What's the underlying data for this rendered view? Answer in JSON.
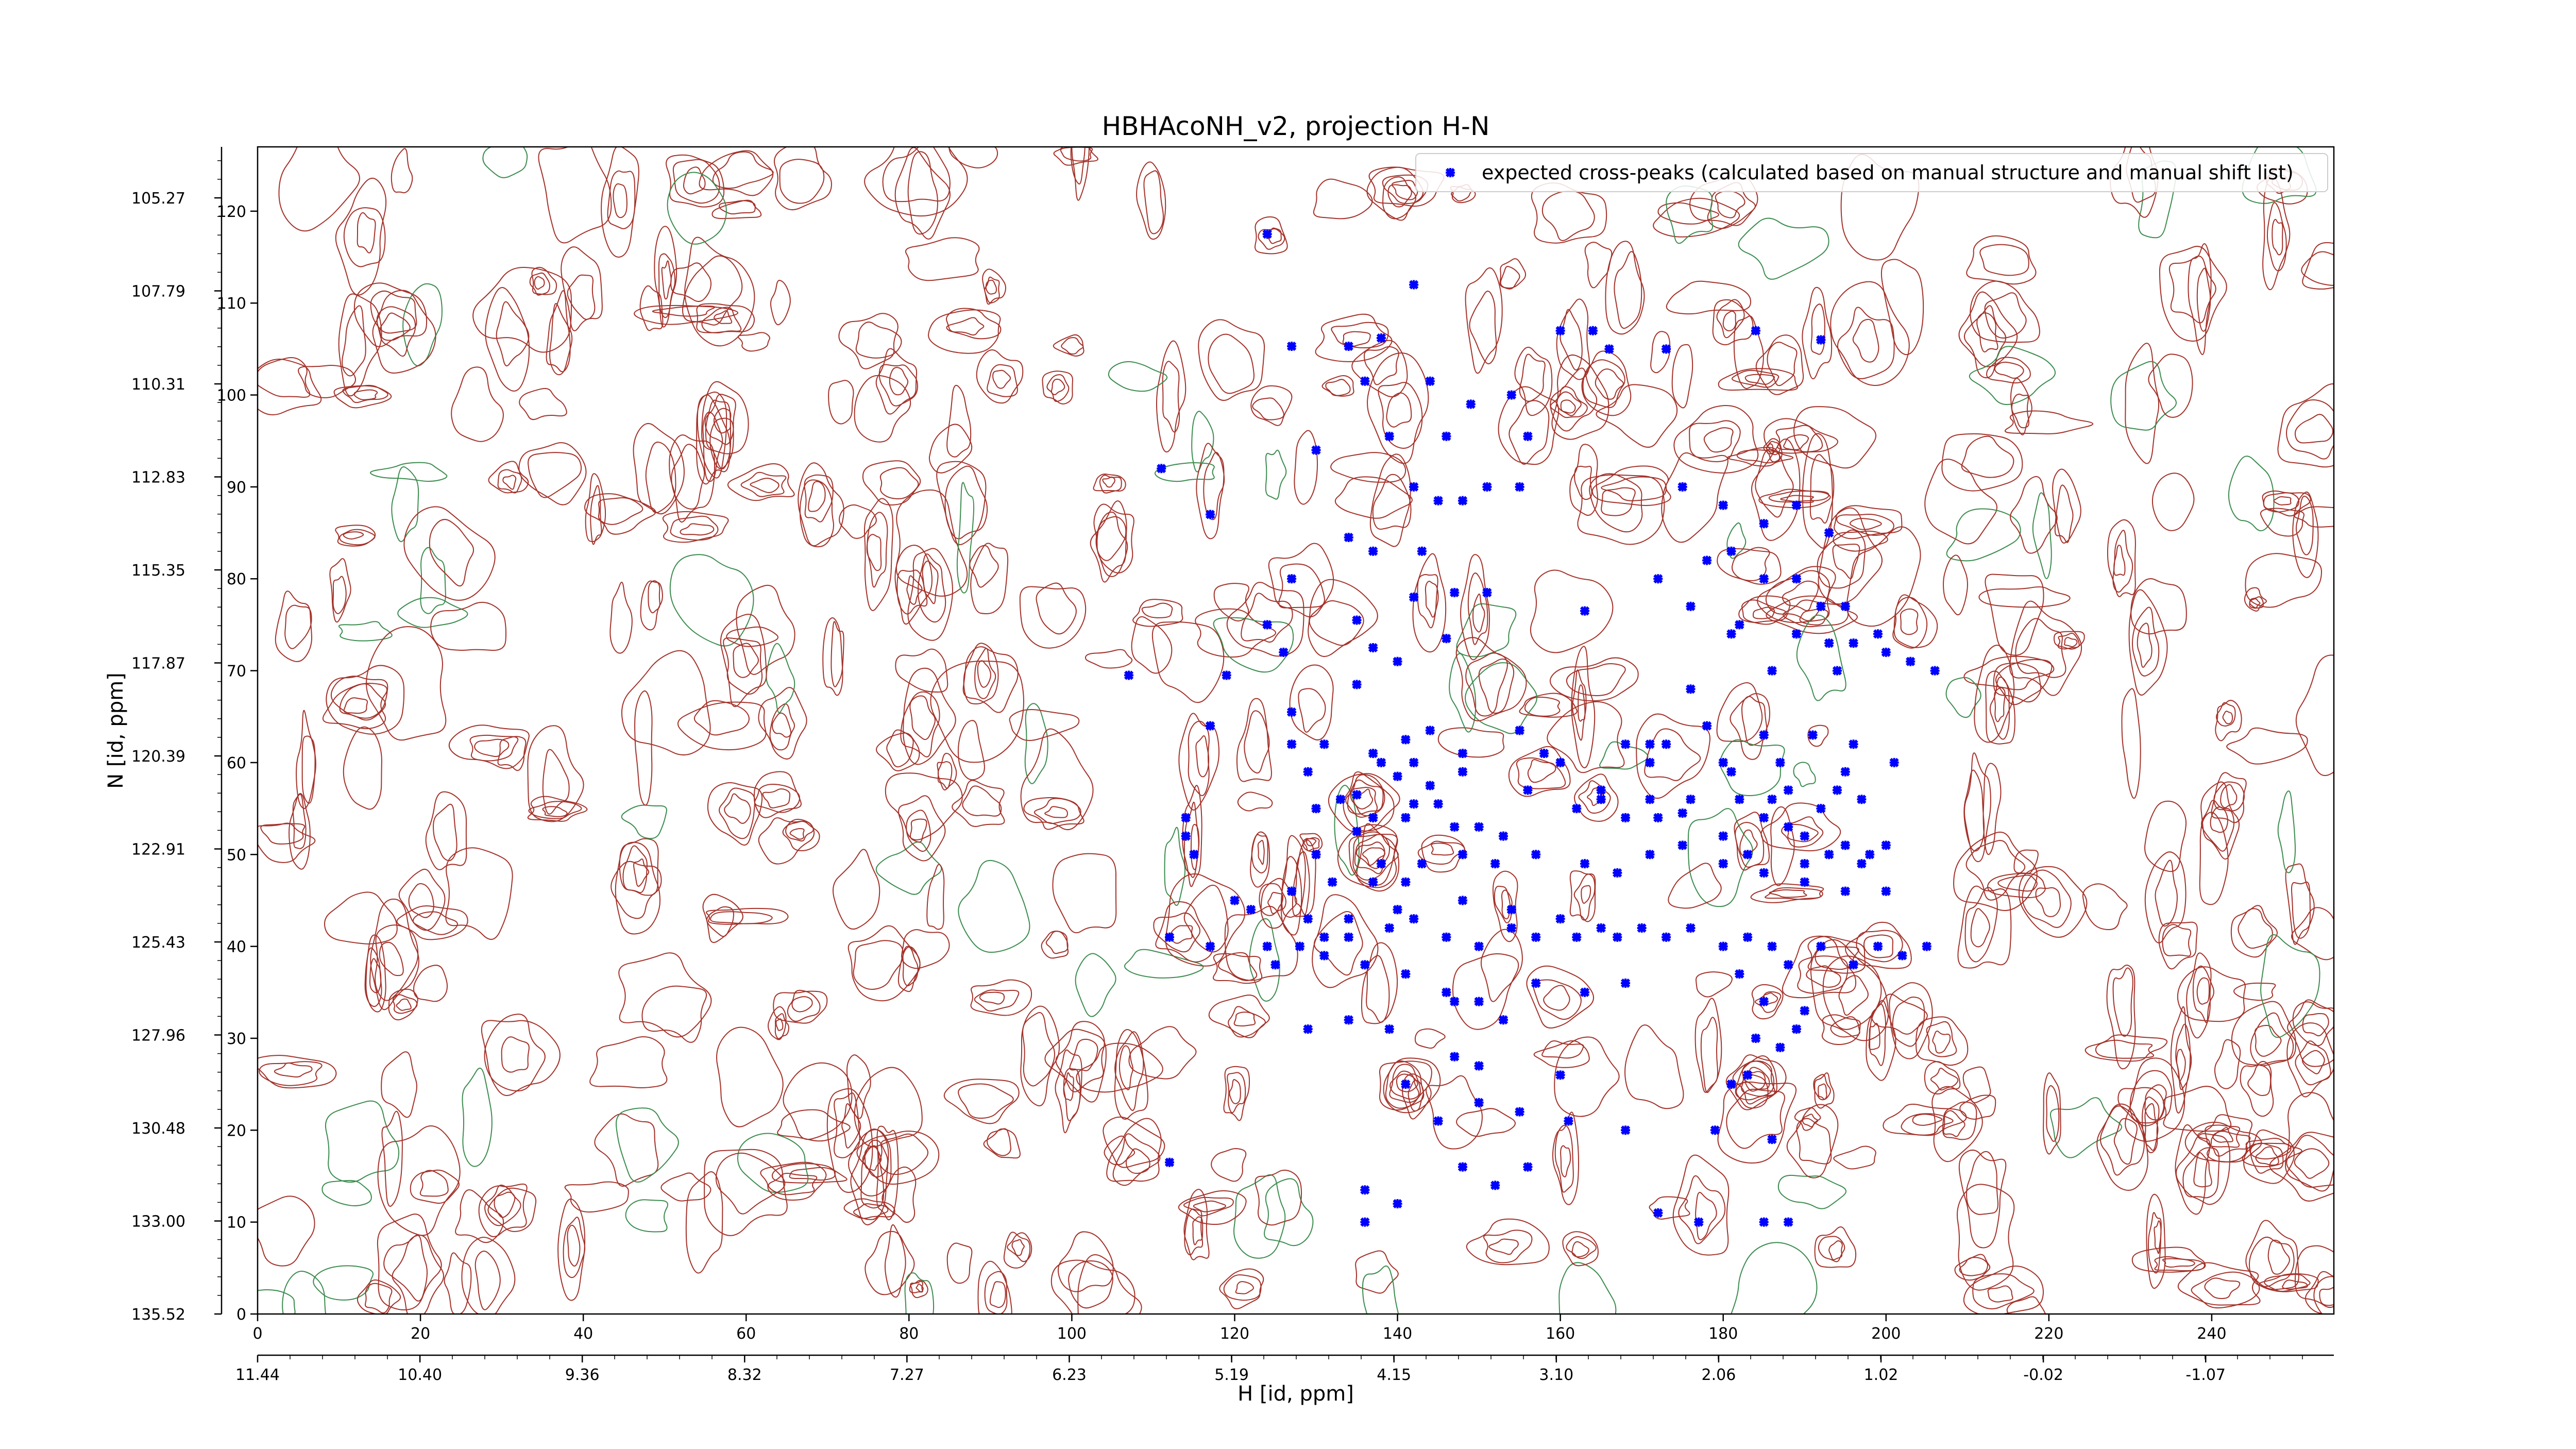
{
  "chart_data": {
    "type": "scatter",
    "title": "HBHAcoNH_v2, projection H-N",
    "xlabel": "H [id, ppm]",
    "ylabel": "N [id, ppm]",
    "xlim": [
      0,
      255
    ],
    "ylim": [
      0,
      127
    ],
    "x_point_ticks": [
      "0",
      "20",
      "40",
      "60",
      "80",
      "100",
      "120",
      "140",
      "160",
      "180",
      "200",
      "220",
      "240"
    ],
    "y_point_ticks": [
      "0",
      "10",
      "20",
      "30",
      "40",
      "50",
      "60",
      "70",
      "80",
      "90",
      "100",
      "110",
      "120"
    ],
    "x_ppm_ticks": [
      "11.44",
      "10.40",
      "9.36",
      "8.32",
      "7.27",
      "6.23",
      "5.19",
      "4.15",
      "3.10",
      "2.06",
      "1.02",
      "-0.02",
      "-1.07"
    ],
    "y_ppm_ticks": [
      "135.52",
      "133.00",
      "130.48",
      "127.96",
      "125.43",
      "122.91",
      "120.39",
      "117.87",
      "115.35",
      "112.83",
      "110.31",
      "107.79",
      "105.27"
    ],
    "grid": false,
    "legend_position": "top-right",
    "series": [
      {
        "name": "expected cross-peaks (calculated based on manual structure and manual shift list)",
        "color": "#0000ff",
        "marker": "x",
        "points": [
          [
            124,
            117.5
          ],
          [
            142,
            112
          ],
          [
            138,
            106.2
          ],
          [
            127,
            105.3
          ],
          [
            134,
            105.3
          ],
          [
            136,
            101.5
          ],
          [
            144,
            101.5
          ],
          [
            149,
            99
          ],
          [
            130,
            94
          ],
          [
            139,
            95.5
          ],
          [
            146,
            95.5
          ],
          [
            156,
            95.5
          ],
          [
            142,
            90
          ],
          [
            145,
            88.5
          ],
          [
            148,
            88.5
          ],
          [
            151,
            90
          ],
          [
            155,
            90
          ],
          [
            117,
            87
          ],
          [
            111,
            92
          ],
          [
            134,
            84.5
          ],
          [
            137,
            83
          ],
          [
            143,
            83
          ],
          [
            127,
            80
          ],
          [
            142,
            78
          ],
          [
            147,
            78.5
          ],
          [
            151,
            78.5
          ],
          [
            163,
            76.5
          ],
          [
            124,
            75
          ],
          [
            135,
            75.5
          ],
          [
            146,
            73.5
          ],
          [
            126,
            72
          ],
          [
            137,
            72.5
          ],
          [
            140,
            71
          ],
          [
            135,
            68.5
          ],
          [
            107,
            69.5
          ],
          [
            119,
            69.5
          ],
          [
            117,
            64
          ],
          [
            127,
            65.5
          ],
          [
            141,
            62.5
          ],
          [
            137,
            61
          ],
          [
            127,
            62
          ],
          [
            131,
            62
          ],
          [
            144,
            63.5
          ],
          [
            148,
            61
          ],
          [
            158,
            61
          ],
          [
            155,
            63.5
          ],
          [
            173,
            62
          ],
          [
            171,
            62
          ],
          [
            129,
            59
          ],
          [
            138,
            60
          ],
          [
            142,
            60
          ],
          [
            148,
            59
          ],
          [
            160,
            60
          ],
          [
            171,
            60
          ],
          [
            180,
            60
          ],
          [
            187,
            60
          ],
          [
            181,
            59
          ],
          [
            195,
            59
          ],
          [
            140,
            58.5
          ],
          [
            144,
            57.5
          ],
          [
            156,
            57
          ],
          [
            165,
            56
          ],
          [
            171,
            56
          ],
          [
            176,
            56
          ],
          [
            182,
            56
          ],
          [
            186,
            56
          ],
          [
            194,
            57
          ],
          [
            133,
            56
          ],
          [
            135,
            56.5
          ],
          [
            130,
            55
          ],
          [
            137,
            54
          ],
          [
            141,
            54
          ],
          [
            142,
            55.5
          ],
          [
            145,
            55.5
          ],
          [
            147,
            53
          ],
          [
            150,
            53
          ],
          [
            153,
            52
          ],
          [
            162,
            55
          ],
          [
            168,
            54
          ],
          [
            172,
            54
          ],
          [
            175,
            54.5
          ],
          [
            185,
            54
          ],
          [
            188,
            53
          ],
          [
            190,
            52
          ],
          [
            195,
            51
          ],
          [
            200,
            51
          ],
          [
            198,
            50
          ],
          [
            171,
            50
          ],
          [
            175,
            51
          ],
          [
            180,
            52
          ],
          [
            183,
            50
          ],
          [
            190,
            49
          ],
          [
            193,
            50
          ],
          [
            197,
            49
          ],
          [
            114,
            54
          ],
          [
            114,
            52
          ],
          [
            115,
            50
          ],
          [
            135,
            52.5
          ],
          [
            130,
            50
          ],
          [
            138,
            49
          ],
          [
            141,
            47
          ],
          [
            143,
            49
          ],
          [
            148,
            50
          ],
          [
            152,
            49
          ],
          [
            157,
            50
          ],
          [
            163,
            49
          ],
          [
            167,
            48
          ],
          [
            180,
            49
          ],
          [
            185,
            48
          ],
          [
            190,
            47
          ],
          [
            195,
            46
          ],
          [
            200,
            46
          ],
          [
            137,
            47
          ],
          [
            132,
            47
          ],
          [
            127,
            46
          ],
          [
            122,
            44
          ],
          [
            124,
            40
          ],
          [
            128,
            40
          ],
          [
            131,
            41
          ],
          [
            134,
            41
          ],
          [
            139,
            42
          ],
          [
            142,
            43
          ],
          [
            146,
            41
          ],
          [
            150,
            40
          ],
          [
            154,
            42
          ],
          [
            157,
            41
          ],
          [
            162,
            41
          ],
          [
            167,
            41
          ],
          [
            173,
            41
          ],
          [
            180,
            40
          ],
          [
            186,
            40
          ],
          [
            192,
            40
          ],
          [
            199,
            40
          ],
          [
            205,
            40
          ],
          [
            112,
            41
          ],
          [
            117,
            40
          ],
          [
            120,
            45
          ],
          [
            129,
            43
          ],
          [
            134,
            43
          ],
          [
            140,
            44
          ],
          [
            148,
            45
          ],
          [
            154,
            44
          ],
          [
            160,
            43
          ],
          [
            165,
            42
          ],
          [
            170,
            42
          ],
          [
            176,
            42
          ],
          [
            183,
            41
          ],
          [
            188,
            38
          ],
          [
            196,
            38
          ],
          [
            202,
            39
          ],
          [
            125,
            38
          ],
          [
            131,
            39
          ],
          [
            136,
            38
          ],
          [
            141,
            37
          ],
          [
            146,
            35
          ],
          [
            150,
            34
          ],
          [
            157,
            36
          ],
          [
            163,
            35
          ],
          [
            168,
            36
          ],
          [
            182,
            37
          ],
          [
            185,
            34
          ],
          [
            190,
            33
          ],
          [
            129,
            31
          ],
          [
            134,
            32
          ],
          [
            139,
            31
          ],
          [
            147,
            34
          ],
          [
            153,
            32
          ],
          [
            184,
            30
          ],
          [
            187,
            29
          ],
          [
            189,
            31
          ],
          [
            141,
            25
          ],
          [
            147,
            28
          ],
          [
            150,
            27
          ],
          [
            160,
            26
          ],
          [
            181,
            25
          ],
          [
            183,
            26
          ],
          [
            145,
            21
          ],
          [
            150,
            23
          ],
          [
            155,
            22
          ],
          [
            161,
            21
          ],
          [
            168,
            20
          ],
          [
            179,
            20
          ],
          [
            186,
            19
          ],
          [
            112,
            16.5
          ],
          [
            148,
            16
          ],
          [
            152,
            14
          ],
          [
            156,
            16
          ],
          [
            136,
            13.5
          ],
          [
            140,
            12
          ],
          [
            172,
            11
          ],
          [
            177,
            10
          ],
          [
            188,
            10
          ],
          [
            136,
            10
          ],
          [
            185,
            10
          ],
          [
            154,
            100
          ],
          [
            160,
            107
          ],
          [
            164,
            107
          ],
          [
            166,
            105
          ],
          [
            173,
            105
          ],
          [
            184,
            107
          ],
          [
            192,
            106
          ],
          [
            175,
            90
          ],
          [
            180,
            88
          ],
          [
            185,
            86
          ],
          [
            189,
            88
          ],
          [
            193,
            85
          ],
          [
            178,
            82
          ],
          [
            181,
            83
          ],
          [
            185,
            80
          ],
          [
            189,
            80
          ],
          [
            192,
            77
          ],
          [
            195,
            77
          ],
          [
            193,
            73
          ],
          [
            196,
            73
          ],
          [
            199,
            74
          ],
          [
            203,
            71
          ],
          [
            182,
            75
          ],
          [
            189,
            74
          ],
          [
            186,
            70
          ],
          [
            194,
            70
          ],
          [
            200,
            72
          ],
          [
            206,
            70
          ],
          [
            172,
            80
          ],
          [
            176,
            77
          ],
          [
            181,
            74
          ],
          [
            191,
            63
          ],
          [
            196,
            62
          ],
          [
            201,
            60
          ],
          [
            197,
            56
          ],
          [
            192,
            55
          ],
          [
            188,
            57
          ],
          [
            185,
            63
          ],
          [
            178,
            64
          ],
          [
            168,
            62
          ],
          [
            165,
            57
          ],
          [
            176,
            68
          ]
        ]
      }
    ]
  }
}
